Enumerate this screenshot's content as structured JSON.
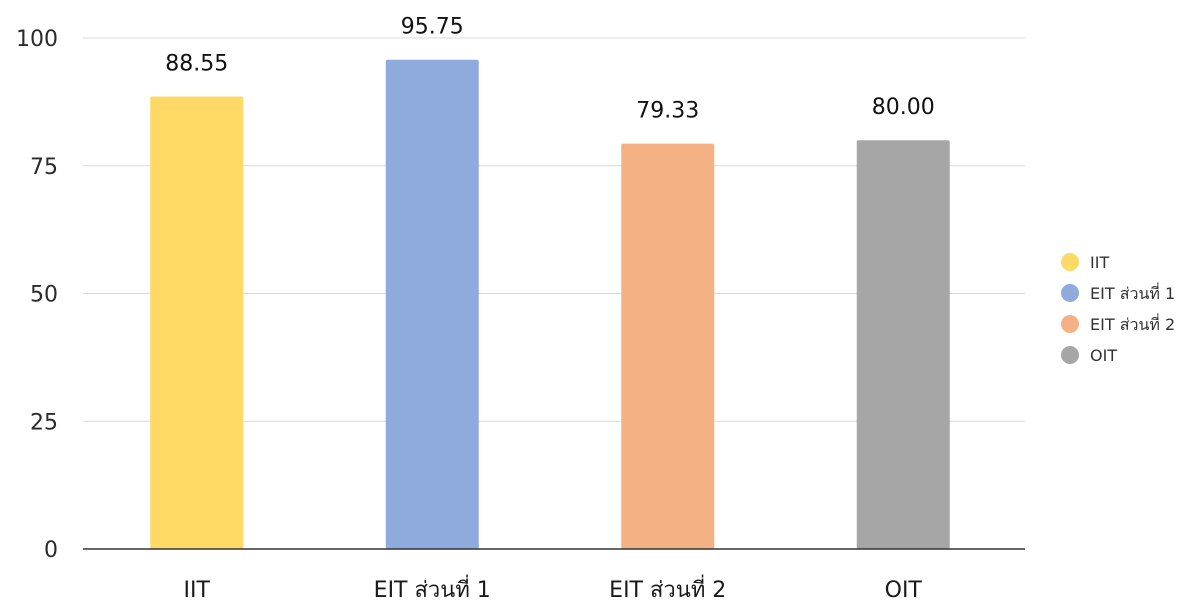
{
  "chart_data": {
    "type": "bar",
    "title": "",
    "xlabel": "",
    "ylabel": "",
    "categories": [
      "IIT",
      "EIT ส่วนที่ 1",
      "EIT ส่วนที่ 2",
      "OIT"
    ],
    "values": [
      88.55,
      95.75,
      79.33,
      80.0
    ],
    "data_labels": [
      "88.55",
      "95.75",
      "79.33",
      "80.00"
    ],
    "colors": [
      "#FED966",
      "#8FAADC",
      "#F4B183",
      "#A6A6A6"
    ],
    "ylim": [
      0,
      100
    ],
    "yticks": [
      0,
      25,
      50,
      75,
      100
    ],
    "grid": true,
    "legend": {
      "position": "right",
      "entries": [
        "IIT",
        "EIT ส่วนที่ 1",
        "EIT ส่วนที่ 2",
        "OIT"
      ]
    }
  }
}
